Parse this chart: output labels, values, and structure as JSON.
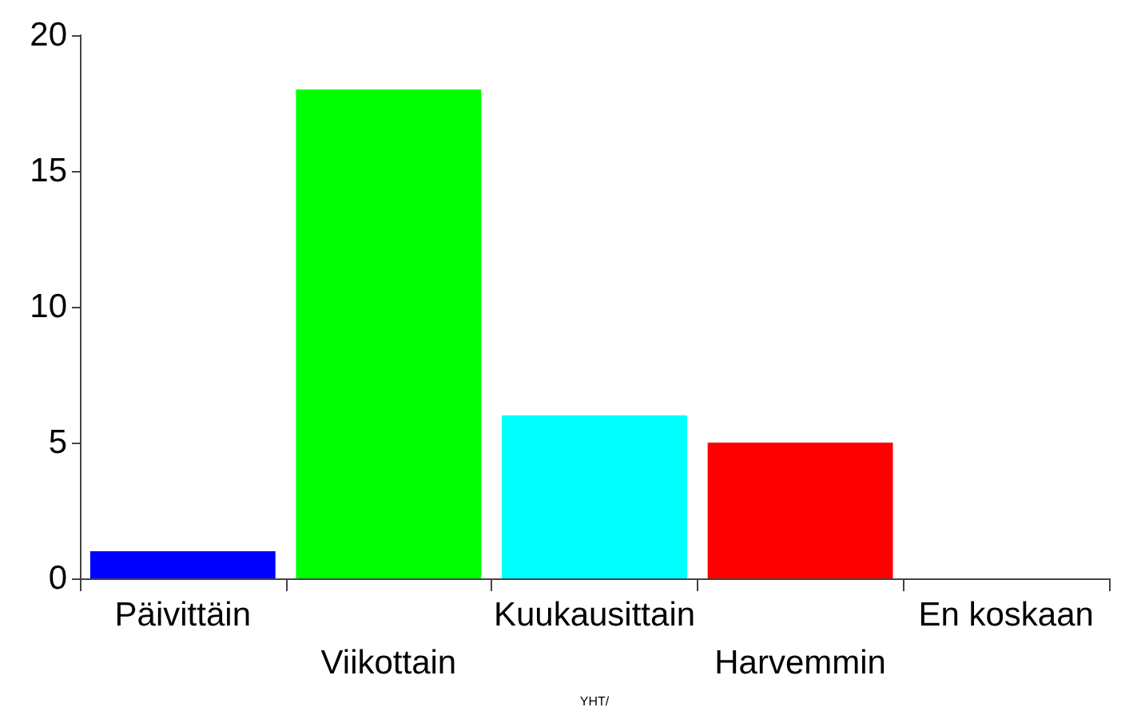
{
  "chart_data": {
    "type": "bar",
    "categories": [
      "Päivittäin",
      "Viikottain",
      "Kuukausittain",
      "Harvemmin",
      "En koskaan"
    ],
    "values": [
      1,
      18,
      6,
      5,
      0
    ],
    "colors": [
      "#0000ff",
      "#00ff00",
      "#00ffff",
      "#ff0000",
      "#ff00ff"
    ],
    "xlabel": "YHT/",
    "ylim": [
      0,
      20
    ],
    "yticks": [
      0,
      5,
      10,
      15,
      20
    ],
    "grid": false
  }
}
